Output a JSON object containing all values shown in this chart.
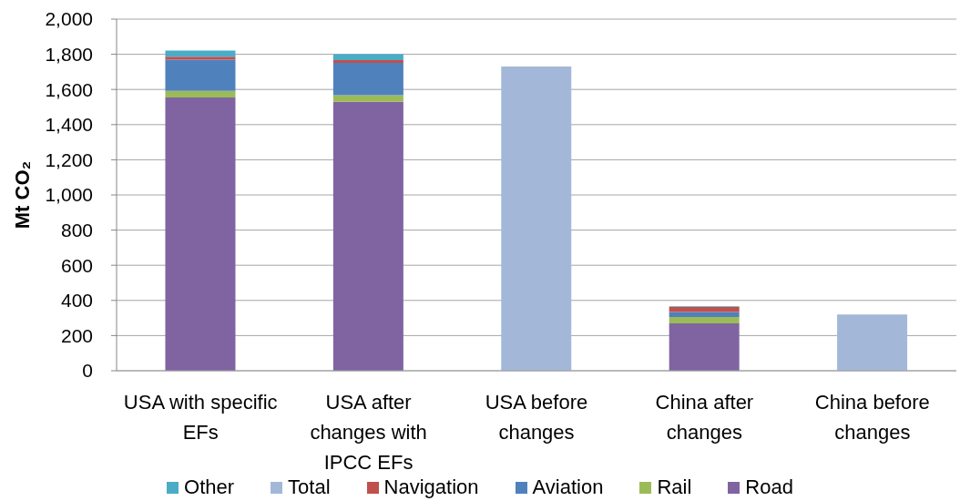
{
  "chart_data": {
    "type": "bar",
    "stacked": true,
    "ylabel": "Mt CO₂",
    "categories": [
      "USA with specific EFs",
      "USA after changes with IPCC EFs",
      "USA before changes",
      "China after changes",
      "China before changes"
    ],
    "series": [
      {
        "name": "Road",
        "color": "#8064a2",
        "values": [
          1555,
          1530,
          null,
          270,
          null
        ]
      },
      {
        "name": "Rail",
        "color": "#9bbb59",
        "values": [
          37,
          38,
          null,
          36,
          null
        ]
      },
      {
        "name": "Aviation",
        "color": "#4f81bd",
        "values": [
          178,
          183,
          null,
          28,
          null
        ]
      },
      {
        "name": "Navigation",
        "color": "#c0504d",
        "values": [
          16,
          16,
          null,
          29,
          null
        ]
      },
      {
        "name": "Total",
        "color": "#a3b8d9",
        "values": [
          null,
          null,
          1730,
          null,
          320
        ]
      },
      {
        "name": "Other",
        "color": "#4bacc6",
        "values": [
          35,
          33,
          null,
          3,
          null
        ]
      }
    ],
    "ylim": [
      0,
      2000
    ],
    "yticks": [
      0,
      200,
      400,
      600,
      800,
      {
        "value": 1000,
        "label": "1,000"
      },
      {
        "value": 1200,
        "label": "1,200"
      },
      {
        "value": 1400,
        "label": "1,400"
      },
      {
        "value": 1600,
        "label": "1,600"
      },
      {
        "value": 1800,
        "label": "1,800"
      },
      {
        "value": 2000,
        "label": "2,000"
      }
    ],
    "grid": "y",
    "legend": "bottom"
  }
}
